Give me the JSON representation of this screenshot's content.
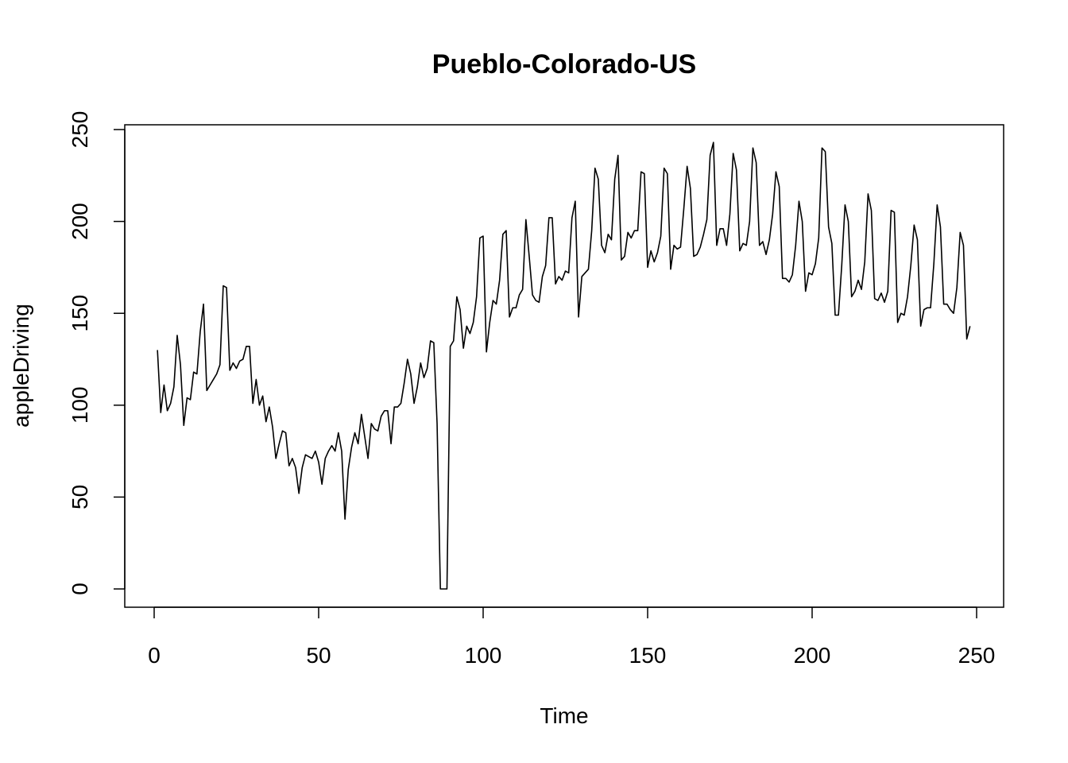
{
  "chart_data": {
    "type": "line",
    "title": "Pueblo-Colorado-US",
    "xlabel": "Time",
    "ylabel": "appleDriving",
    "xlim": [
      1,
      248
    ],
    "ylim": [
      0,
      243
    ],
    "x_ticks": [
      0,
      50,
      100,
      150,
      200,
      250
    ],
    "x_tick_labels": [
      "0",
      "50",
      "100",
      "150",
      "200",
      "250"
    ],
    "y_ticks": [
      0,
      50,
      100,
      150,
      200,
      250
    ],
    "y_tick_labels": [
      "0",
      "50",
      "100",
      "150",
      "200",
      "250"
    ],
    "grid": false,
    "series": [
      {
        "name": "",
        "values": [
          130,
          96,
          111,
          97,
          101,
          110,
          138,
          122,
          89,
          104,
          103,
          118,
          117,
          140,
          155,
          108,
          111,
          114,
          117,
          122,
          165,
          164,
          119,
          123,
          120,
          124,
          125,
          132,
          132,
          101,
          114,
          100,
          105,
          91,
          99,
          88,
          71,
          79,
          86,
          85,
          67,
          71,
          66,
          52,
          66,
          73,
          72,
          71,
          75,
          69,
          57,
          71,
          75,
          78,
          75,
          85,
          75,
          38,
          65,
          77,
          85,
          79,
          95,
          83,
          71,
          90,
          87,
          86,
          94,
          97,
          97,
          79,
          99,
          99,
          101,
          112,
          125,
          117,
          101,
          110,
          123,
          115,
          120,
          135,
          134,
          90,
          0,
          0,
          0,
          132,
          135,
          159,
          152,
          131,
          143,
          139,
          145,
          159,
          191,
          192,
          129,
          145,
          157,
          155,
          168,
          193,
          195,
          148,
          153,
          153,
          160,
          163,
          201,
          181,
          160,
          157,
          156,
          170,
          176,
          202,
          202,
          166,
          170,
          168,
          173,
          172,
          202,
          211,
          148,
          170,
          172,
          174,
          195,
          229,
          223,
          187,
          183,
          193,
          190,
          223,
          236,
          179,
          181,
          194,
          191,
          195,
          195,
          227,
          226,
          175,
          184,
          178,
          183,
          192,
          229,
          226,
          174,
          187,
          185,
          186,
          207,
          230,
          218,
          181,
          182,
          186,
          193,
          201,
          236,
          243,
          187,
          196,
          196,
          187,
          204,
          237,
          228,
          184,
          188,
          187,
          200,
          240,
          232,
          187,
          189,
          182,
          190,
          204,
          227,
          219,
          169,
          169,
          167,
          171,
          187,
          211,
          200,
          162,
          172,
          171,
          177,
          191,
          240,
          238,
          197,
          188,
          149,
          149,
          176,
          209,
          200,
          159,
          162,
          168,
          163,
          178,
          215,
          206,
          158,
          157,
          161,
          156,
          162,
          206,
          205,
          145,
          150,
          149,
          159,
          176,
          198,
          190,
          143,
          152,
          153,
          153,
          177,
          209,
          197,
          155,
          155,
          152,
          150,
          164,
          194,
          187,
          136,
          143
        ]
      }
    ]
  }
}
